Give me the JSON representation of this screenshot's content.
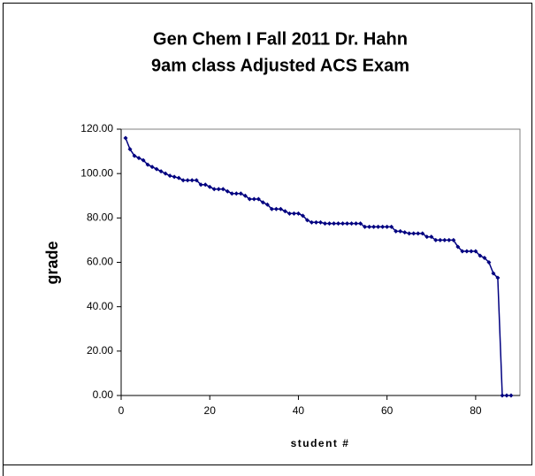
{
  "chart_data": {
    "type": "line",
    "title": [
      "Gen Chem I Fall 2011 Dr. Hahn",
      "9am class Adjusted ACS Exam"
    ],
    "xlabel": "student #",
    "ylabel": "grade",
    "x": [
      1,
      2,
      3,
      4,
      5,
      6,
      7,
      8,
      9,
      10,
      11,
      12,
      13,
      14,
      15,
      16,
      17,
      18,
      19,
      20,
      21,
      22,
      23,
      24,
      25,
      26,
      27,
      28,
      29,
      30,
      31,
      32,
      33,
      34,
      35,
      36,
      37,
      38,
      39,
      40,
      41,
      42,
      43,
      44,
      45,
      46,
      47,
      48,
      49,
      50,
      51,
      52,
      53,
      54,
      55,
      56,
      57,
      58,
      59,
      60,
      61,
      62,
      63,
      64,
      65,
      66,
      67,
      68,
      69,
      70,
      71,
      72,
      73,
      74,
      75,
      76,
      77,
      78,
      79,
      80,
      81,
      82,
      83,
      84,
      85,
      86,
      87,
      88
    ],
    "values": [
      116,
      111,
      108,
      107,
      106,
      104,
      103,
      102,
      101,
      100,
      99,
      98.5,
      98,
      97,
      97,
      97,
      97,
      95,
      95,
      94,
      93,
      93,
      93,
      92,
      91,
      91,
      91,
      90,
      88.5,
      88.5,
      88.5,
      87,
      86,
      84,
      84,
      84,
      83,
      82,
      82,
      82,
      81,
      79,
      78,
      78,
      78,
      77.5,
      77.5,
      77.5,
      77.5,
      77.5,
      77.5,
      77.5,
      77.5,
      77.5,
      76,
      76,
      76,
      76,
      76,
      76,
      76,
      74,
      74,
      73.5,
      73,
      73,
      73,
      73,
      71.5,
      71.5,
      70,
      70,
      70,
      70,
      70,
      67,
      65,
      65,
      65,
      65,
      63,
      62,
      60,
      55,
      53,
      0,
      0,
      0
    ],
    "color": "#000080",
    "xlim": [
      0,
      90
    ],
    "xticks": [
      0,
      20,
      40,
      60,
      80
    ],
    "ylim": [
      0,
      120
    ],
    "yticks": [
      {
        "value": 0,
        "label": "0.00"
      },
      {
        "value": 20,
        "label": "20.00"
      },
      {
        "value": 40,
        "label": "40.00"
      },
      {
        "value": 60,
        "label": "60.00"
      },
      {
        "value": 80,
        "label": "80.00"
      },
      {
        "value": 100,
        "label": "100.00"
      },
      {
        "value": 120,
        "label": "120.00"
      }
    ],
    "grid": false
  }
}
